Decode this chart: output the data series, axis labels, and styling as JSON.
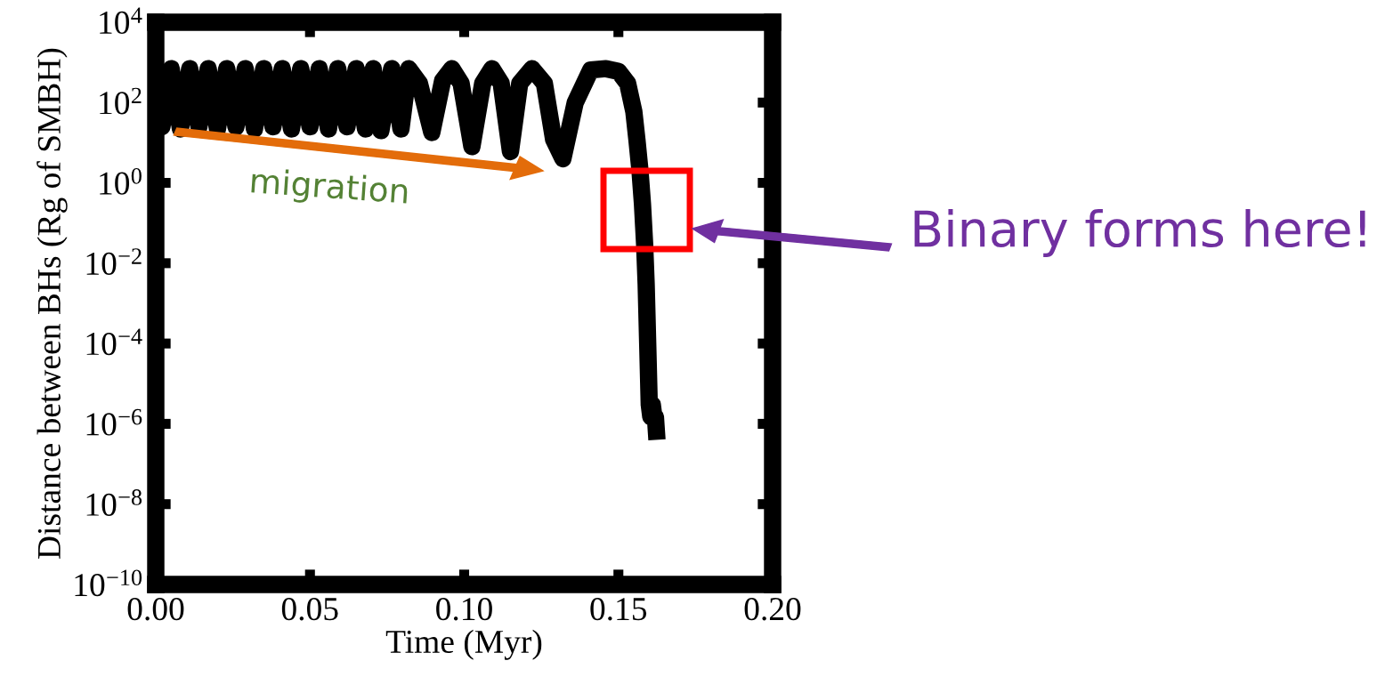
{
  "chart_data": {
    "type": "line",
    "xlabel": "Time (Myr)",
    "ylabel": "Distance between BHs (Rg of SMBH)",
    "x": [
      0.0,
      0.002,
      0.005,
      0.008,
      0.011,
      0.014,
      0.017,
      0.02,
      0.023,
      0.026,
      0.029,
      0.032,
      0.035,
      0.038,
      0.041,
      0.044,
      0.047,
      0.05,
      0.053,
      0.056,
      0.059,
      0.062,
      0.065,
      0.068,
      0.0705,
      0.073,
      0.0765,
      0.0795,
      0.082,
      0.0855,
      0.0895,
      0.093,
      0.096,
      0.099,
      0.1025,
      0.106,
      0.109,
      0.112,
      0.115,
      0.118,
      0.122,
      0.126,
      0.129,
      0.132,
      0.136,
      0.141,
      0.146,
      0.15,
      0.153,
      0.155,
      0.156,
      0.157,
      0.1578,
      0.1585,
      0.159,
      0.1595,
      0.16,
      0.1605,
      0.161,
      0.1615,
      0.162,
      0.1625
    ],
    "values": [
      700,
      25,
      700,
      22,
      700,
      25,
      700,
      22,
      700,
      25,
      700,
      22,
      700,
      25,
      700,
      22,
      700,
      25,
      700,
      22,
      700,
      25,
      700,
      22,
      700,
      20,
      700,
      22,
      700,
      300,
      18,
      350,
      700,
      300,
      8,
      300,
      700,
      300,
      6,
      300,
      700,
      300,
      12,
      4,
      100,
      650,
      700,
      600,
      300,
      60,
      12,
      2,
      0.3,
      0.03,
      0.003,
      0.0001,
      3e-06,
      1.5e-06,
      3e-06,
      1.5e-06,
      1.5e-06,
      4e-07
    ],
    "color": "#000000",
    "log": "y",
    "xlim": [
      0,
      0.2
    ],
    "ylim": [
      1e-10,
      10000.0
    ],
    "xticks": [
      {
        "value": 0,
        "label": "0.00"
      },
      {
        "value": 0.05,
        "label": "0.05"
      },
      {
        "value": 0.1,
        "label": "0.10"
      },
      {
        "value": 0.15,
        "label": "0.15"
      },
      {
        "value": 0.2,
        "label": "0.20"
      }
    ],
    "yticks": [
      {
        "value": 1e-10,
        "label": "10$^{−10}$"
      },
      {
        "value": 1e-08,
        "label": "10$^{−8}$"
      },
      {
        "value": 1e-06,
        "label": "10$^{−6}$"
      },
      {
        "value": 0.0001,
        "label": "10$^{−4}$"
      },
      {
        "value": 0.01,
        "label": "10$^{−2}$"
      },
      {
        "value": 1,
        "label": "10$^{0}$"
      },
      {
        "value": 100,
        "label": "10$^{2}$"
      },
      {
        "value": 10000.0,
        "label": "10$^{4}$"
      }
    ],
    "grid": false,
    "legend": false,
    "marker": "none",
    "line_style": "solid",
    "annotations": [
      "migration",
      "Binary forms here!"
    ]
  }
}
